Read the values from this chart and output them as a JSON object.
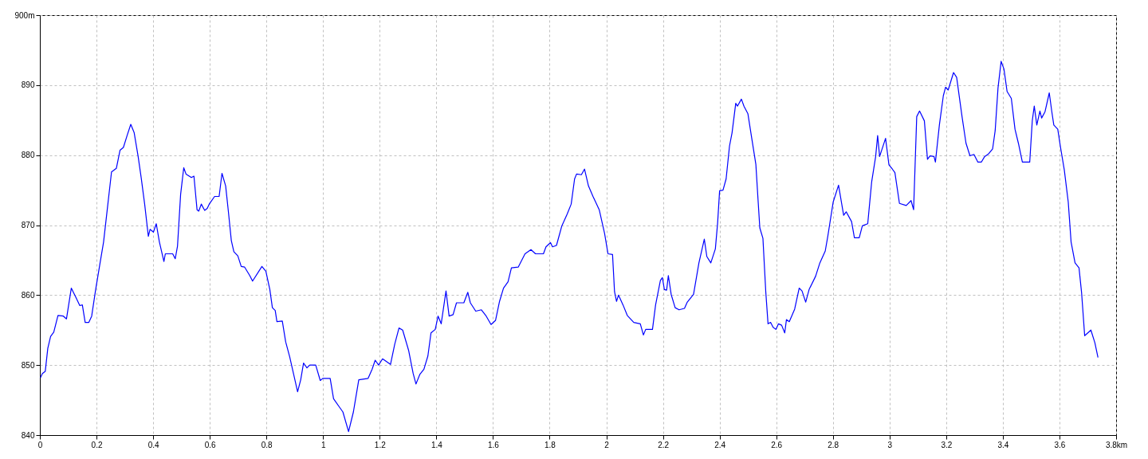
{
  "chart_data": {
    "type": "line",
    "xlim": [
      0,
      3.8
    ],
    "ylim": [
      840,
      900
    ],
    "xticks": [
      0,
      0.2,
      0.4,
      0.6,
      0.8,
      1,
      1.2,
      1.4,
      1.6,
      1.8,
      2,
      2.2,
      2.4,
      2.6,
      2.8,
      3,
      3.2,
      3.4,
      3.6,
      {
        "value": 3.8,
        "label": "3.8km"
      }
    ],
    "yticks": [
      840,
      850,
      860,
      870,
      880,
      890,
      {
        "value": 900,
        "label": "900m"
      }
    ],
    "grid": true,
    "marker": "none",
    "line_style": "solid",
    "series": [
      {
        "color": "#0000ff",
        "x": [
          0.002,
          0.009,
          0.019,
          0.028,
          0.038,
          0.049,
          0.064,
          0.083,
          0.094,
          0.111,
          0.127,
          0.141,
          0.15,
          0.16,
          0.173,
          0.183,
          0.197,
          0.211,
          0.225,
          0.239,
          0.253,
          0.27,
          0.283,
          0.295,
          0.308,
          0.321,
          0.333,
          0.347,
          0.358,
          0.37,
          0.383,
          0.389,
          0.401,
          0.411,
          0.422,
          0.438,
          0.443,
          0.469,
          0.478,
          0.486,
          0.497,
          0.508,
          0.516,
          0.535,
          0.544,
          0.555,
          0.561,
          0.57,
          0.582,
          0.591,
          0.598,
          0.617,
          0.633,
          0.643,
          0.656,
          0.666,
          0.676,
          0.685,
          0.699,
          0.711,
          0.723,
          0.741,
          0.751,
          0.784,
          0.798,
          0.812,
          0.821,
          0.831,
          0.837,
          0.856,
          0.868,
          0.882,
          0.896,
          0.91,
          0.921,
          0.931,
          0.943,
          0.953,
          0.974,
          0.99,
          0.999,
          1.025,
          1.037,
          1.056,
          1.07,
          1.09,
          1.107,
          1.126,
          1.159,
          1.173,
          1.184,
          1.196,
          1.21,
          1.238,
          1.253,
          1.268,
          1.281,
          1.302,
          1.318,
          1.328,
          1.342,
          1.356,
          1.37,
          1.381,
          1.396,
          1.406,
          1.417,
          1.434,
          1.445,
          1.459,
          1.471,
          1.497,
          1.511,
          1.52,
          1.539,
          1.559,
          1.576,
          1.593,
          1.609,
          1.623,
          1.637,
          1.653,
          1.665,
          1.689,
          1.713,
          1.734,
          1.75,
          1.778,
          1.787,
          1.803,
          1.81,
          1.824,
          1.843,
          1.862,
          1.876,
          1.888,
          1.895,
          1.912,
          1.923,
          1.937,
          1.953,
          1.975,
          1.994,
          2.006,
          2.022,
          2.029,
          2.036,
          2.043,
          2.059,
          2.074,
          2.097,
          2.12,
          2.131,
          2.139,
          2.163,
          2.174,
          2.191,
          2.198,
          2.205,
          2.213,
          2.219,
          2.229,
          2.243,
          2.257,
          2.276,
          2.286,
          2.308,
          2.327,
          2.346,
          2.355,
          2.369,
          2.385,
          2.393,
          2.4,
          2.412,
          2.423,
          2.435,
          2.444,
          2.457,
          2.463,
          2.477,
          2.486,
          2.5,
          2.512,
          2.528,
          2.535,
          2.542,
          2.553,
          2.563,
          2.571,
          2.58,
          2.589,
          2.599,
          2.608,
          2.619,
          2.63,
          2.636,
          2.646,
          2.665,
          2.681,
          2.691,
          2.704,
          2.716,
          2.739,
          2.754,
          2.773,
          2.782,
          2.801,
          2.82,
          2.838,
          2.847,
          2.866,
          2.876,
          2.893,
          2.904,
          2.923,
          2.937,
          2.951,
          2.958,
          2.965,
          2.986,
          2.998,
          3.01,
          3.019,
          3.035,
          3.059,
          3.076,
          3.085,
          3.096,
          3.106,
          3.123,
          3.134,
          3.143,
          3.157,
          3.162,
          3.176,
          3.19,
          3.198,
          3.207,
          3.226,
          3.237,
          3.256,
          3.27,
          3.284,
          3.298,
          3.312,
          3.324,
          3.336,
          3.35,
          3.364,
          3.373,
          3.383,
          3.394,
          3.404,
          3.415,
          3.43,
          3.443,
          3.455,
          3.469,
          3.495,
          3.504,
          3.511,
          3.52,
          3.531,
          3.537,
          3.549,
          3.564,
          3.573,
          3.58,
          3.594,
          3.603,
          3.617,
          3.631,
          3.641,
          3.655,
          3.669,
          3.678,
          3.689,
          3.711,
          3.725,
          3.736
        ],
        "values": [
          848.2,
          848.8,
          849.1,
          852.4,
          854.1,
          854.7,
          857.1,
          857.0,
          856.6,
          861.0,
          859.7,
          858.5,
          858.6,
          856.1,
          856.1,
          857.0,
          860.8,
          864.2,
          867.6,
          872.6,
          877.6,
          878.1,
          880.7,
          881.1,
          882.8,
          884.4,
          883.2,
          879.8,
          876.7,
          873.0,
          868.4,
          869.4,
          869.0,
          870.2,
          867.6,
          864.8,
          865.9,
          865.9,
          865.2,
          867.0,
          874.4,
          878.2,
          877.3,
          876.8,
          877.0,
          872.2,
          872.0,
          873.0,
          872.1,
          872.4,
          873.0,
          874.1,
          874.1,
          877.4,
          875.6,
          871.8,
          867.8,
          866.2,
          865.6,
          864.1,
          864.0,
          862.8,
          862.0,
          864.1,
          863.4,
          860.8,
          858.2,
          857.8,
          856.2,
          856.3,
          853.3,
          851.2,
          848.7,
          846.2,
          847.9,
          850.3,
          849.6,
          850.0,
          850.0,
          847.8,
          848.1,
          848.1,
          845.2,
          844.1,
          843.3,
          840.5,
          843.3,
          847.9,
          848.1,
          849.4,
          850.7,
          850.0,
          850.9,
          850.1,
          853.0,
          855.3,
          855.0,
          852.1,
          848.8,
          847.3,
          848.7,
          849.4,
          851.3,
          854.6,
          855.1,
          857.0,
          855.9,
          860.6,
          857.0,
          857.2,
          858.9,
          858.9,
          860.4,
          858.9,
          857.7,
          857.9,
          857.0,
          855.8,
          856.4,
          859.1,
          861.0,
          861.9,
          863.9,
          864.0,
          865.9,
          866.5,
          865.9,
          865.9,
          866.9,
          867.5,
          866.9,
          867.1,
          869.9,
          871.6,
          873.0,
          876.6,
          877.3,
          877.2,
          878.0,
          875.6,
          874.1,
          872.2,
          868.8,
          865.9,
          865.8,
          860.5,
          859.1,
          860.0,
          858.6,
          857.1,
          856.1,
          855.9,
          854.3,
          855.1,
          855.1,
          858.6,
          862.1,
          862.5,
          860.8,
          860.7,
          862.8,
          860.1,
          858.2,
          857.9,
          858.1,
          859.0,
          860.1,
          864.6,
          868.0,
          865.5,
          864.6,
          866.6,
          870.3,
          874.9,
          875.0,
          876.6,
          881.3,
          883.2,
          887.4,
          887.0,
          888.0,
          887.0,
          885.9,
          882.8,
          878.7,
          874.1,
          869.6,
          868.1,
          860.5,
          855.9,
          856.1,
          855.4,
          855.1,
          855.9,
          855.7,
          854.6,
          856.5,
          856.2,
          858.0,
          861.0,
          860.6,
          859.0,
          860.8,
          862.7,
          864.6,
          866.3,
          868.4,
          873.3,
          875.7,
          871.4,
          871.9,
          870.5,
          868.2,
          868.2,
          869.9,
          870.2,
          876.2,
          879.8,
          882.8,
          879.8,
          882.4,
          878.6,
          878.0,
          877.5,
          873.1,
          872.8,
          873.5,
          872.2,
          885.5,
          886.3,
          884.9,
          879.4,
          879.9,
          879.8,
          879.0,
          884.3,
          888.5,
          889.7,
          889.3,
          891.8,
          891.1,
          885.5,
          881.7,
          879.9,
          880.1,
          879.0,
          879.0,
          879.8,
          880.2,
          880.9,
          883.5,
          889.6,
          893.4,
          892.3,
          889.1,
          888.1,
          883.7,
          881.7,
          879.0,
          879.0,
          884.9,
          887.0,
          884.3,
          886.3,
          885.3,
          886.2,
          888.9,
          886.2,
          884.3,
          883.7,
          881.3,
          877.9,
          873.3,
          867.6,
          864.6,
          863.9,
          860.4,
          854.2,
          855.0,
          853.2,
          851.1
        ]
      }
    ]
  }
}
